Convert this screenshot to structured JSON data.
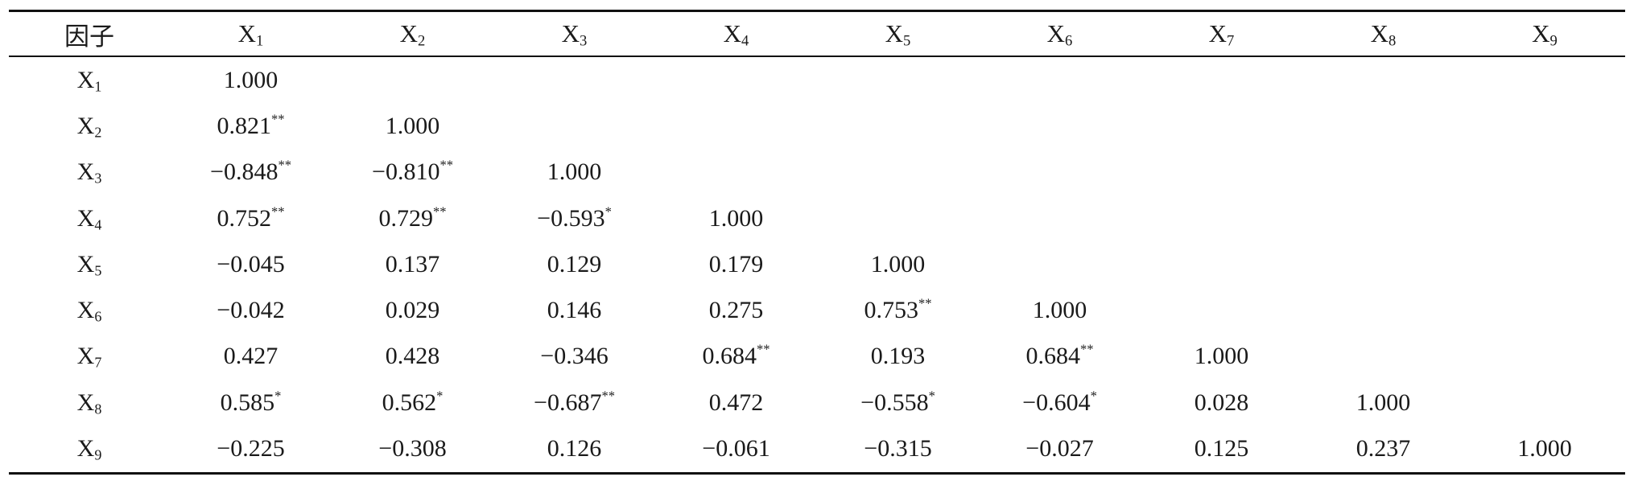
{
  "table": {
    "corner_header": "因子",
    "columns": [
      {
        "base": "X",
        "sub": "1"
      },
      {
        "base": "X",
        "sub": "2"
      },
      {
        "base": "X",
        "sub": "3"
      },
      {
        "base": "X",
        "sub": "4"
      },
      {
        "base": "X",
        "sub": "5"
      },
      {
        "base": "X",
        "sub": "6"
      },
      {
        "base": "X",
        "sub": "7"
      },
      {
        "base": "X",
        "sub": "8"
      },
      {
        "base": "X",
        "sub": "9"
      }
    ],
    "rows": [
      {
        "label": {
          "base": "X",
          "sub": "1"
        },
        "cells": [
          {
            "v": "1.000",
            "sig": ""
          }
        ]
      },
      {
        "label": {
          "base": "X",
          "sub": "2"
        },
        "cells": [
          {
            "v": "0.821",
            "sig": "**"
          },
          {
            "v": "1.000",
            "sig": ""
          }
        ]
      },
      {
        "label": {
          "base": "X",
          "sub": "3"
        },
        "cells": [
          {
            "v": "−0.848",
            "sig": "**"
          },
          {
            "v": "−0.810",
            "sig": "**"
          },
          {
            "v": "1.000",
            "sig": ""
          }
        ]
      },
      {
        "label": {
          "base": "X",
          "sub": "4"
        },
        "cells": [
          {
            "v": "0.752",
            "sig": "**"
          },
          {
            "v": "0.729",
            "sig": "**"
          },
          {
            "v": "−0.593",
            "sig": "*"
          },
          {
            "v": "1.000",
            "sig": ""
          }
        ]
      },
      {
        "label": {
          "base": "X",
          "sub": "5"
        },
        "cells": [
          {
            "v": "−0.045",
            "sig": ""
          },
          {
            "v": "0.137",
            "sig": ""
          },
          {
            "v": "0.129",
            "sig": ""
          },
          {
            "v": "0.179",
            "sig": ""
          },
          {
            "v": "1.000",
            "sig": ""
          }
        ]
      },
      {
        "label": {
          "base": "X",
          "sub": "6"
        },
        "cells": [
          {
            "v": "−0.042",
            "sig": ""
          },
          {
            "v": "0.029",
            "sig": ""
          },
          {
            "v": "0.146",
            "sig": ""
          },
          {
            "v": "0.275",
            "sig": ""
          },
          {
            "v": "0.753",
            "sig": "**"
          },
          {
            "v": "1.000",
            "sig": ""
          }
        ]
      },
      {
        "label": {
          "base": "X",
          "sub": "7"
        },
        "cells": [
          {
            "v": "0.427",
            "sig": ""
          },
          {
            "v": "0.428",
            "sig": ""
          },
          {
            "v": "−0.346",
            "sig": ""
          },
          {
            "v": "0.684",
            "sig": "**"
          },
          {
            "v": "0.193",
            "sig": ""
          },
          {
            "v": "0.684",
            "sig": "**"
          },
          {
            "v": "1.000",
            "sig": ""
          }
        ]
      },
      {
        "label": {
          "base": "X",
          "sub": "8"
        },
        "cells": [
          {
            "v": "0.585",
            "sig": "*"
          },
          {
            "v": "0.562",
            "sig": "*"
          },
          {
            "v": "−0.687",
            "sig": "**"
          },
          {
            "v": "0.472",
            "sig": ""
          },
          {
            "v": "−0.558",
            "sig": "*"
          },
          {
            "v": "−0.604",
            "sig": "*"
          },
          {
            "v": "0.028",
            "sig": ""
          },
          {
            "v": "1.000",
            "sig": ""
          }
        ]
      },
      {
        "label": {
          "base": "X",
          "sub": "9"
        },
        "cells": [
          {
            "v": "−0.225",
            "sig": ""
          },
          {
            "v": "−0.308",
            "sig": ""
          },
          {
            "v": "0.126",
            "sig": ""
          },
          {
            "v": "−0.061",
            "sig": ""
          },
          {
            "v": "−0.315",
            "sig": ""
          },
          {
            "v": "−0.027",
            "sig": ""
          },
          {
            "v": "0.125",
            "sig": ""
          },
          {
            "v": "0.237",
            "sig": ""
          },
          {
            "v": "1.000",
            "sig": ""
          }
        ]
      }
    ]
  }
}
